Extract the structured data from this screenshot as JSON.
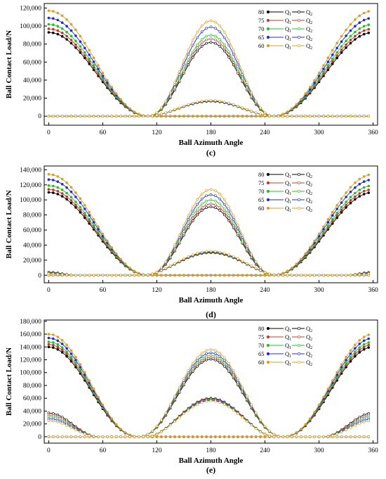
{
  "chart_data": [
    {
      "type": "line",
      "panel_label": "(c)",
      "xlabel": "Ball Azimuth Angle",
      "ylabel": "Ball Contact Load/N",
      "xlim": [
        -5,
        365
      ],
      "ylim": [
        -10000,
        125000
      ],
      "xticks": [
        0,
        60,
        120,
        180,
        240,
        300,
        360
      ],
      "yticks": [
        0,
        20000,
        40000,
        60000,
        80000,
        100000,
        120000
      ],
      "ytick_labels": [
        "0",
        "20,000",
        "40,000",
        "60,000",
        "80,000",
        "100,000",
        "120,000"
      ],
      "grid": false,
      "legend_position": "top-right",
      "legend_q1": "Q1",
      "legend_q2": "Q2",
      "series": [
        {
          "name": "80",
          "color": "#000000",
          "q1_peak": 93000,
          "q2_peak": 82000,
          "q2_side": 16500
        },
        {
          "name": "75",
          "color": "#c0392b",
          "q1_peak": 97000,
          "q2_peak": 86000,
          "q2_side": 16800
        },
        {
          "name": "70",
          "color": "#22c02a",
          "q1_peak": 102000,
          "q2_peak": 90000,
          "q2_side": 17000
        },
        {
          "name": "65",
          "color": "#1e28e0",
          "q1_peak": 109000,
          "q2_peak": 99000,
          "q2_side": 17200
        },
        {
          "name": "60",
          "color": "#d8a020",
          "q1_peak": 117000,
          "q2_peak": 106000,
          "q2_side": 17500
        }
      ],
      "valley_center_q1": 110,
      "valley_center_q2": 250,
      "q1_zero_start": 110,
      "q1_zero_end": 250
    },
    {
      "type": "line",
      "panel_label": "(d)",
      "xlabel": "Ball Azimuth Angle",
      "ylabel": "Ball Contact Load/N",
      "xlim": [
        -5,
        365
      ],
      "ylim": [
        -10000,
        145000
      ],
      "xticks": [
        0,
        60,
        120,
        180,
        240,
        300,
        360
      ],
      "yticks": [
        0,
        20000,
        40000,
        60000,
        80000,
        100000,
        120000,
        140000
      ],
      "ytick_labels": [
        "0",
        "20,000",
        "40,000",
        "60,000",
        "80,000",
        "100,000",
        "120,000",
        "140,000"
      ],
      "grid": false,
      "legend_position": "top-right",
      "legend_q1": "Q1",
      "legend_q2": "Q2",
      "series": [
        {
          "name": "80",
          "color": "#000000",
          "q1_peak": 110000,
          "q2_peak": 91000,
          "q2_side": 30000,
          "q2_edge": 4000
        },
        {
          "name": "75",
          "color": "#c0392b",
          "q1_peak": 114000,
          "q2_peak": 95000,
          "q2_side": 30500,
          "q2_edge": 3500
        },
        {
          "name": "70",
          "color": "#22c02a",
          "q1_peak": 119000,
          "q2_peak": 100000,
          "q2_side": 31000,
          "q2_edge": 3000
        },
        {
          "name": "65",
          "color": "#1e28e0",
          "q1_peak": 127000,
          "q2_peak": 107000,
          "q2_side": 31500,
          "q2_edge": 2500
        },
        {
          "name": "60",
          "color": "#d8a020",
          "q1_peak": 134000,
          "q2_peak": 114000,
          "q2_side": 32000,
          "q2_edge": 2000
        }
      ]
    },
    {
      "type": "line",
      "panel_label": "(e)",
      "xlabel": "Ball Azimuth Angle",
      "ylabel": "Ball Contact Load/N",
      "xlim": [
        -5,
        365
      ],
      "ylim": [
        -10000,
        182000
      ],
      "xticks": [
        0,
        60,
        120,
        180,
        240,
        300,
        360
      ],
      "yticks": [
        0,
        20000,
        40000,
        60000,
        80000,
        100000,
        120000,
        140000,
        160000,
        180000
      ],
      "ytick_labels": [
        "0",
        "20,000",
        "40,000",
        "60,000",
        "80,000",
        "100,000",
        "120,000",
        "140,000",
        "160,000",
        "180,000"
      ],
      "grid": false,
      "legend_position": "top-right",
      "legend_q1": "Q1",
      "legend_q2": "Q2",
      "series": [
        {
          "name": "80",
          "color": "#000000",
          "q1_peak": 140000,
          "q2_peak": 121000,
          "q2_side": 60000,
          "q2_edge": 37000
        },
        {
          "name": "75",
          "color": "#c0392b",
          "q1_peak": 144000,
          "q2_peak": 124000,
          "q2_side": 59000,
          "q2_edge": 34000
        },
        {
          "name": "70",
          "color": "#22c02a",
          "q1_peak": 148000,
          "q2_peak": 127000,
          "q2_side": 58000,
          "q2_edge": 31000
        },
        {
          "name": "65",
          "color": "#1e28e0",
          "q1_peak": 154000,
          "q2_peak": 131000,
          "q2_side": 57000,
          "q2_edge": 28000
        },
        {
          "name": "60",
          "color": "#d8a020",
          "q1_peak": 160000,
          "q2_peak": 136000,
          "q2_side": 56000,
          "q2_edge": 25000
        }
      ]
    }
  ]
}
